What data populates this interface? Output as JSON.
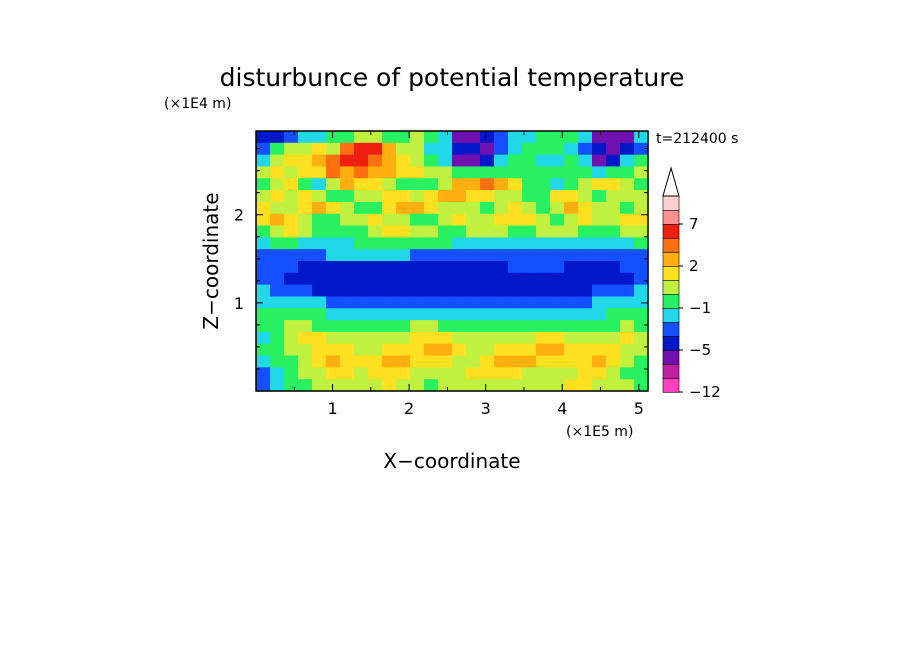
{
  "chart_data": {
    "type": "heatmap",
    "title": "disturbunce of potential temperature",
    "xlabel": "X−coordinate",
    "ylabel": "Z−coordinate",
    "x_unit": "(×1E5 m)",
    "y_unit": "(×1E4 m)",
    "time_label": "t=212400 s",
    "xlim": [
      0,
      5.12
    ],
    "ylim": [
      0,
      2.95
    ],
    "x_ticks": [
      "1",
      "2",
      "3",
      "4",
      "5"
    ],
    "y_ticks": [
      "1",
      "2"
    ],
    "colorbar": {
      "levels_shown": [
        "7",
        "2",
        "−1",
        "−5",
        "−12"
      ],
      "colors": [
        "#ff40c0",
        "#c020a0",
        "#7010b0",
        "#0018c8",
        "#1450ff",
        "#20d8e8",
        "#28f060",
        "#c0f040",
        "#ffe020",
        "#ffb010",
        "#ff7010",
        "#f02010",
        "#ff9090",
        "#ffd0d0"
      ],
      "extend": "max"
    },
    "rows": [
      [
        3,
        3,
        4,
        5,
        5,
        6,
        6,
        7,
        7,
        6,
        6,
        7,
        6,
        5,
        2,
        2,
        3,
        4,
        5,
        5,
        6,
        6,
        6,
        5,
        2,
        2,
        2,
        5
      ],
      [
        4,
        6,
        7,
        7,
        8,
        7,
        10,
        11,
        11,
        9,
        7,
        7,
        5,
        5,
        3,
        3,
        2,
        4,
        5,
        6,
        6,
        6,
        5,
        4,
        3,
        2,
        3,
        4
      ],
      [
        5,
        7,
        8,
        8,
        9,
        10,
        11,
        11,
        10,
        9,
        8,
        7,
        6,
        5,
        2,
        2,
        3,
        5,
        6,
        6,
        5,
        5,
        6,
        5,
        2,
        3,
        5,
        6
      ],
      [
        7,
        8,
        7,
        8,
        8,
        10,
        9,
        10,
        9,
        9,
        8,
        8,
        7,
        7,
        6,
        6,
        6,
        6,
        6,
        6,
        6,
        6,
        6,
        6,
        5,
        6,
        6,
        7
      ],
      [
        6,
        7,
        8,
        6,
        5,
        7,
        9,
        8,
        8,
        7,
        6,
        6,
        6,
        7,
        9,
        9,
        10,
        9,
        8,
        6,
        6,
        5,
        6,
        7,
        8,
        8,
        7,
        6
      ],
      [
        7,
        8,
        7,
        8,
        7,
        6,
        6,
        7,
        7,
        8,
        8,
        7,
        8,
        9,
        9,
        8,
        8,
        7,
        7,
        6,
        6,
        8,
        8,
        7,
        6,
        7,
        7,
        7
      ],
      [
        8,
        7,
        7,
        8,
        9,
        8,
        7,
        6,
        6,
        8,
        9,
        9,
        8,
        7,
        7,
        7,
        6,
        7,
        8,
        7,
        6,
        7,
        9,
        8,
        7,
        7,
        6,
        7
      ],
      [
        8,
        9,
        8,
        7,
        6,
        6,
        7,
        7,
        8,
        7,
        7,
        6,
        6,
        7,
        8,
        7,
        7,
        8,
        8,
        8,
        7,
        6,
        7,
        8,
        7,
        7,
        8,
        8
      ],
      [
        6,
        7,
        8,
        7,
        6,
        6,
        6,
        6,
        7,
        8,
        8,
        7,
        7,
        6,
        6,
        7,
        7,
        7,
        6,
        6,
        7,
        7,
        7,
        6,
        6,
        6,
        7,
        7
      ],
      [
        5,
        6,
        6,
        5,
        5,
        5,
        5,
        6,
        6,
        6,
        6,
        6,
        6,
        6,
        5,
        5,
        5,
        5,
        5,
        5,
        5,
        5,
        5,
        5,
        5,
        5,
        5,
        6
      ],
      [
        4,
        4,
        4,
        4,
        4,
        5,
        5,
        5,
        5,
        5,
        5,
        4,
        4,
        4,
        4,
        4,
        4,
        4,
        4,
        4,
        4,
        4,
        4,
        4,
        4,
        4,
        4,
        4
      ],
      [
        4,
        4,
        4,
        3,
        3,
        3,
        3,
        3,
        3,
        3,
        3,
        3,
        3,
        3,
        3,
        3,
        3,
        3,
        4,
        4,
        4,
        4,
        3,
        3,
        3,
        3,
        4,
        4
      ],
      [
        4,
        4,
        3,
        3,
        3,
        3,
        3,
        3,
        3,
        3,
        3,
        3,
        3,
        3,
        3,
        3,
        3,
        3,
        3,
        3,
        3,
        3,
        3,
        3,
        3,
        3,
        3,
        4
      ],
      [
        5,
        4,
        4,
        4,
        3,
        3,
        3,
        3,
        3,
        3,
        3,
        3,
        3,
        3,
        3,
        3,
        3,
        3,
        3,
        3,
        3,
        3,
        3,
        3,
        4,
        4,
        4,
        5
      ],
      [
        5,
        5,
        5,
        5,
        5,
        4,
        4,
        4,
        4,
        4,
        4,
        4,
        4,
        4,
        4,
        4,
        4,
        4,
        4,
        4,
        4,
        4,
        4,
        4,
        5,
        5,
        5,
        5
      ],
      [
        6,
        6,
        6,
        6,
        6,
        5,
        5,
        5,
        5,
        5,
        5,
        5,
        5,
        5,
        5,
        5,
        5,
        5,
        5,
        5,
        5,
        5,
        5,
        5,
        5,
        6,
        6,
        6
      ],
      [
        6,
        6,
        7,
        7,
        6,
        6,
        6,
        6,
        6,
        6,
        6,
        7,
        7,
        6,
        6,
        6,
        6,
        6,
        6,
        6,
        6,
        6,
        6,
        6,
        6,
        6,
        7,
        6
      ],
      [
        5,
        6,
        7,
        8,
        8,
        7,
        7,
        7,
        7,
        7,
        7,
        8,
        8,
        8,
        7,
        7,
        7,
        7,
        7,
        7,
        8,
        8,
        7,
        7,
        7,
        7,
        8,
        7
      ],
      [
        6,
        6,
        7,
        7,
        8,
        8,
        8,
        7,
        7,
        8,
        8,
        8,
        9,
        9,
        8,
        7,
        7,
        8,
        8,
        8,
        9,
        9,
        8,
        8,
        8,
        8,
        7,
        7
      ],
      [
        5,
        6,
        6,
        7,
        8,
        9,
        8,
        8,
        8,
        9,
        9,
        8,
        8,
        8,
        7,
        7,
        8,
        9,
        9,
        9,
        8,
        8,
        8,
        8,
        9,
        8,
        7,
        6
      ],
      [
        4,
        5,
        6,
        7,
        7,
        8,
        8,
        7,
        8,
        8,
        8,
        7,
        7,
        7,
        7,
        8,
        8,
        8,
        8,
        7,
        7,
        7,
        7,
        8,
        8,
        7,
        6,
        6
      ],
      [
        4,
        5,
        6,
        6,
        7,
        7,
        7,
        7,
        7,
        8,
        7,
        7,
        6,
        7,
        7,
        7,
        7,
        7,
        7,
        7,
        7,
        7,
        8,
        8,
        7,
        7,
        7,
        6
      ]
    ]
  }
}
